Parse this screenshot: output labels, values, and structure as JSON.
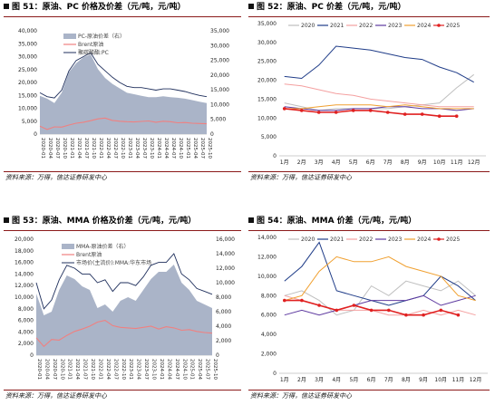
{
  "source_text": "资料来源：万得，信达证券研发中心",
  "charts": [
    {
      "title": "图 51：原油、PC 价格及价差（元/吨，元/吨）",
      "legend": [
        "PC-原油价差（右）",
        "Brent原油",
        "聚碳酸酯:PC"
      ],
      "colors": {
        "area": "#aab4c8",
        "brent": "#f08080",
        "price": "#1f2f5c"
      }
    },
    {
      "title": "图 52：原油、PC 价差（元/吨，元/吨）",
      "legend": [
        "2020",
        "2021",
        "2022",
        "2023",
        "2024",
        "2025"
      ],
      "colors": [
        "#bfbfbf",
        "#1f3c88",
        "#f4a0a0",
        "#5e3aa0",
        "#f0a030",
        "#e02020"
      ]
    },
    {
      "title": "图 53：原油、MMA 价格及价差（元/吨，元/吨）",
      "legend": [
        "MMA-原油价差（右）",
        "Brent原油",
        "市场价(主流价):MMA:华东市场"
      ],
      "colors": {
        "area": "#aab4c8",
        "brent": "#f08080",
        "price": "#1f2f5c"
      }
    },
    {
      "title": "图 54：原油、MMA 价差（元/吨，元/吨）",
      "legend": [
        "2020",
        "2021",
        "2022",
        "2023",
        "2024",
        "2025"
      ],
      "colors": [
        "#bfbfbf",
        "#1f3c88",
        "#f4a0a0",
        "#5e3aa0",
        "#f0a030",
        "#e02020"
      ]
    }
  ],
  "chart_data": [
    {
      "type": "area",
      "xlabels": [
        "2020-01",
        "2020-04",
        "2020-07",
        "2020-10",
        "2021-01",
        "2021-04",
        "2021-07",
        "2021-10",
        "2022-01",
        "2022-04",
        "2022-07",
        "2022-10",
        "2023-01",
        "2023-04",
        "2023-07",
        "2023-10",
        "2024-01",
        "2024-04",
        "2024-07",
        "2024-10",
        "2025-01",
        "2025-04",
        "2025-07",
        "2025-10"
      ],
      "ylim_left": [
        0,
        40000
      ],
      "yticks_left": [
        "0",
        "5,000",
        "10,000",
        "15,000",
        "20,000",
        "25,000",
        "30,000",
        "35,000",
        "40,000"
      ],
      "ylim_right": [
        0,
        35000
      ],
      "yticks_right": [
        "0",
        "5,000",
        "10,000",
        "15,000",
        "20,000",
        "25,000",
        "30,000",
        "35,000"
      ],
      "series": [
        {
          "name": "PC-原油价差（右）",
          "axis": "right",
          "values": [
            13000,
            12000,
            10500,
            14000,
            21000,
            24000,
            26000,
            27000,
            22000,
            19000,
            17000,
            15500,
            14000,
            13500,
            13000,
            12500,
            12500,
            12800,
            12500,
            12300,
            12000,
            11500,
            11000,
            10500
          ]
        },
        {
          "name": "Brent原油",
          "axis": "left",
          "values": [
            3100,
            1800,
            2800,
            2700,
            3500,
            4200,
            4600,
            5200,
            5900,
            6200,
            5300,
            5000,
            4800,
            4700,
            4900,
            5100,
            4600,
            5000,
            4800,
            4400,
            4500,
            4200,
            4100,
            4000
          ]
        },
        {
          "name": "聚碳酸酯:PC",
          "axis": "left",
          "values": [
            16000,
            14500,
            14000,
            17000,
            24500,
            28500,
            30000,
            31500,
            27000,
            24500,
            22000,
            20000,
            18500,
            18000,
            18000,
            17500,
            17000,
            17500,
            17500,
            17000,
            16500,
            15700,
            15000,
            14500
          ]
        }
      ]
    },
    {
      "type": "line",
      "xlabels": [
        "1月",
        "2月",
        "3月",
        "4月",
        "5月",
        "6月",
        "7月",
        "8月",
        "9月",
        "10月",
        "11月",
        "12月"
      ],
      "ylim": [
        0,
        35000
      ],
      "yticks": [
        "0",
        "5,000",
        "10,000",
        "15,000",
        "20,000",
        "25,000",
        "30,000",
        "35,000"
      ],
      "series": [
        {
          "name": "2020",
          "values": [
            14000,
            13000,
            12000,
            12500,
            12500,
            12500,
            12500,
            13000,
            13500,
            14000,
            18000,
            21500
          ]
        },
        {
          "name": "2021",
          "values": [
            21000,
            20500,
            24000,
            29000,
            28500,
            28000,
            27000,
            26000,
            25500,
            23500,
            22000,
            19500
          ]
        },
        {
          "name": "2022",
          "values": [
            19000,
            18500,
            17500,
            16500,
            16000,
            15000,
            14500,
            14000,
            13500,
            13000,
            13000,
            13000
          ]
        },
        {
          "name": "2023",
          "values": [
            13000,
            12500,
            12000,
            12000,
            12500,
            12500,
            13000,
            13000,
            12500,
            12500,
            12000,
            12500
          ]
        },
        {
          "name": "2024",
          "values": [
            12500,
            12500,
            13000,
            13500,
            13500,
            13500,
            13000,
            13500,
            13000,
            12500,
            12500,
            12500
          ]
        },
        {
          "name": "2025",
          "values": [
            12500,
            12000,
            11500,
            11500,
            12000,
            12000,
            11500,
            11000,
            11000,
            10500,
            10500,
            null
          ]
        }
      ]
    },
    {
      "type": "area",
      "xlabels": [
        "2020-01",
        "2020-04",
        "2020-07",
        "2020-10",
        "2021-01",
        "2021-04",
        "2021-07",
        "2021-10",
        "2022-01",
        "2022-04",
        "2022-07",
        "2022-10",
        "2023-01",
        "2023-04",
        "2023-07",
        "2023-10",
        "2024-01",
        "2024-04",
        "2024-07",
        "2024-10",
        "2025-01",
        "2025-04",
        "2025-07",
        "2025-10"
      ],
      "ylim_left": [
        0,
        20000
      ],
      "yticks_left": [
        "0",
        "2,000",
        "4,000",
        "6,000",
        "8,000",
        "10,000",
        "12,000",
        "14,000",
        "16,000",
        "18,000",
        "20,000"
      ],
      "ylim_right": [
        0,
        16000
      ],
      "yticks_right": [
        "0",
        "2,000",
        "4,000",
        "6,000",
        "8,000",
        "10,000",
        "12,000",
        "14,000",
        "16,000"
      ],
      "series": [
        {
          "name": "MMA-原油价差（右）",
          "axis": "right",
          "values": [
            8500,
            5500,
            6000,
            9000,
            11000,
            10500,
            9500,
            9000,
            6500,
            7000,
            6000,
            7500,
            8000,
            7500,
            9000,
            10500,
            11500,
            11500,
            12500,
            10000,
            9000,
            7500,
            7000,
            6500
          ]
        },
        {
          "name": "Brent原油",
          "axis": "left",
          "values": [
            3000,
            1500,
            2700,
            2600,
            3400,
            4100,
            4500,
            5000,
            5700,
            6000,
            5100,
            4800,
            4700,
            4600,
            4800,
            5000,
            4500,
            4900,
            4700,
            4300,
            4400,
            4100,
            3900,
            3800
          ]
        },
        {
          "name": "市场价(主流价):MMA:华东市场",
          "axis": "left",
          "values": [
            12500,
            8000,
            9500,
            13000,
            15500,
            15000,
            14000,
            14000,
            12500,
            13000,
            11000,
            12500,
            12500,
            12000,
            13500,
            15500,
            16000,
            16000,
            17500,
            14000,
            13000,
            11500,
            11000,
            10500
          ]
        }
      ]
    },
    {
      "type": "line",
      "xlabels": [
        "1月",
        "2月",
        "3月",
        "4月",
        "5月",
        "6月",
        "7月",
        "8月",
        "9月",
        "10月",
        "11月",
        "12月"
      ],
      "ylim": [
        0,
        14000
      ],
      "yticks": [
        "0",
        "2,000",
        "4,000",
        "6,000",
        "8,000",
        "10,000",
        "12,000",
        "14,000"
      ],
      "series": [
        {
          "name": "2020",
          "values": [
            8000,
            8500,
            7500,
            6000,
            6500,
            9000,
            8000,
            9500,
            9000,
            8500,
            9500,
            8000
          ]
        },
        {
          "name": "2021",
          "values": [
            9500,
            11000,
            13500,
            8500,
            8000,
            7500,
            7000,
            7500,
            8000,
            10000,
            9000,
            7500
          ]
        },
        {
          "name": "2022",
          "values": [
            8000,
            7500,
            7000,
            6500,
            6500,
            6500,
            6000,
            6000,
            6500,
            6000,
            6500,
            6000
          ]
        },
        {
          "name": "2023",
          "values": [
            6000,
            6500,
            6000,
            6500,
            7000,
            7500,
            7500,
            7500,
            8000,
            7000,
            7500,
            8000
          ]
        },
        {
          "name": "2024",
          "values": [
            7500,
            8000,
            10500,
            12000,
            11500,
            11500,
            12000,
            11000,
            10500,
            10000,
            8000,
            7500
          ]
        },
        {
          "name": "2025",
          "values": [
            7500,
            7500,
            7000,
            6500,
            7000,
            6500,
            6500,
            6000,
            6000,
            6500,
            6000,
            null
          ]
        }
      ]
    }
  ]
}
